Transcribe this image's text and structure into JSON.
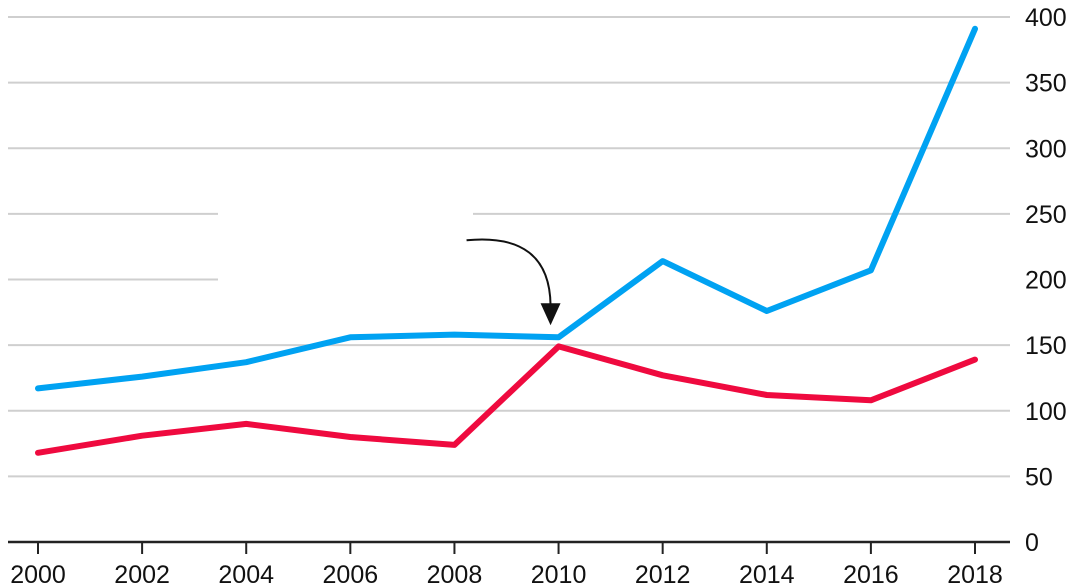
{
  "chart_data": {
    "type": "line",
    "x": [
      2000,
      2002,
      2004,
      2006,
      2008,
      2010,
      2012,
      2014,
      2016,
      2018
    ],
    "x_tick_labels": [
      "2000",
      "2002",
      "2004",
      "2006",
      "2008",
      "2010",
      "2012",
      "2014",
      "2016",
      "2018"
    ],
    "y_tick_labels": [
      "0",
      "50",
      "100",
      "150",
      "200",
      "250",
      "300",
      "350",
      "400"
    ],
    "ylim": [
      0,
      400
    ],
    "xlim": [
      2000,
      2018
    ],
    "y_axis_position": "right",
    "grid": true,
    "legend": false,
    "series": [
      {
        "color": "#00a2f2",
        "values": [
          117,
          126,
          137,
          156,
          158,
          156,
          214,
          176,
          207,
          391
        ]
      },
      {
        "color": "#ef0a3f",
        "values": [
          68,
          81,
          90,
          80,
          74,
          149,
          127,
          112,
          108,
          139
        ]
      }
    ],
    "annotations": [
      {
        "type": "arrow",
        "x": 2010,
        "y": 156
      }
    ]
  }
}
